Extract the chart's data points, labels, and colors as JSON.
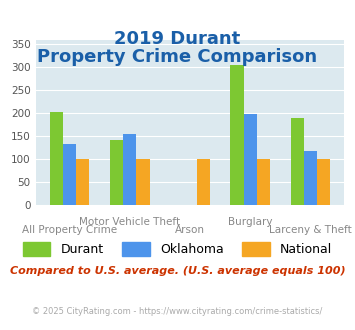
{
  "title_line1": "2019 Durant",
  "title_line2": "Property Crime Comparison",
  "categories": [
    "All Property Crime",
    "Motor Vehicle Theft",
    "Arson",
    "Burglary",
    "Larceny & Theft"
  ],
  "series": {
    "Durant": [
      201,
      141,
      0,
      305,
      188
    ],
    "Oklahoma": [
      133,
      153,
      0,
      198,
      118
    ],
    "National": [
      100,
      100,
      100,
      100,
      100
    ]
  },
  "colors": {
    "Durant": "#7dc832",
    "Oklahoma": "#4d94eb",
    "National": "#f5a623"
  },
  "ylim": [
    0,
    360
  ],
  "yticks": [
    0,
    50,
    100,
    150,
    200,
    250,
    300,
    350
  ],
  "bar_width": 0.22,
  "plot_bg": "#dce9ef",
  "grid_color": "#ffffff",
  "title_color": "#1a5fa8",
  "xlabel_color": "#888888",
  "legend_fontsize": 9,
  "title_fontsize": 13,
  "xlabel_fontsize": 7.5,
  "footer_text": "Compared to U.S. average. (U.S. average equals 100)",
  "footer_color": "#cc3300",
  "copyright_text": "© 2025 CityRating.com - https://www.cityrating.com/crime-statistics/",
  "copyright_color": "#aaaaaa"
}
